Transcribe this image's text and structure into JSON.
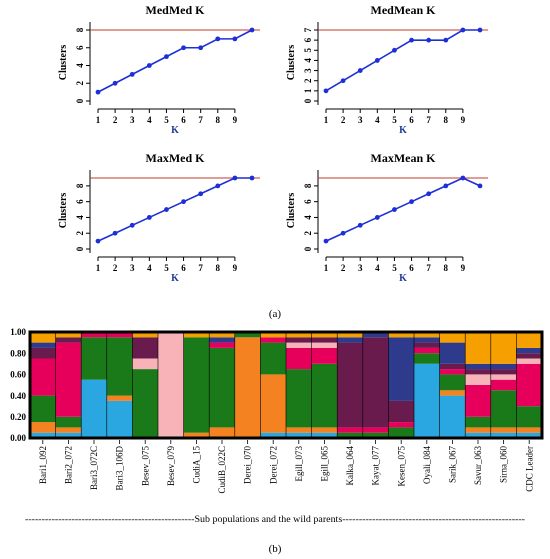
{
  "panel_labels": {
    "a": "(a)",
    "b": "(b)"
  },
  "k_panels": {
    "xlabel": "K",
    "ylabel": "Clusters",
    "reference_line_color": "#c0392b",
    "series_color": "#1d2fd6"
  },
  "structure": {
    "footer": "---------------------------------------------------Sub populations and the wild parents-------------------------------------------------------",
    "cluster_colors": [
      "#2aa7e0",
      "#f58220",
      "#1a7a1a",
      "#e6005c",
      "#f7b3b8",
      "#6a1b4d",
      "#2e3a8c",
      "#f5a000",
      "#b30047",
      "#3a2a6e"
    ]
  },
  "chart_data": [
    {
      "type": "line",
      "title": "MedMed K",
      "xlabel": "K",
      "ylabel": "Clusters",
      "x": [
        1,
        2,
        3,
        4,
        5,
        6,
        7,
        8,
        9,
        10
      ],
      "y": [
        1,
        2,
        3,
        4,
        5,
        6,
        6,
        7,
        7,
        8
      ],
      "xticks": [
        "1",
        "2",
        "3",
        "4",
        "5",
        "6",
        "7",
        "8",
        "9"
      ],
      "yticks": [
        "0",
        "2",
        "4",
        "6",
        "8"
      ],
      "xlim": [
        1,
        10
      ],
      "ylim": [
        0,
        8
      ],
      "reference_line": 8
    },
    {
      "type": "line",
      "title": "MedMean K",
      "xlabel": "K",
      "ylabel": "Clusters",
      "x": [
        1,
        2,
        3,
        4,
        5,
        6,
        7,
        8,
        9,
        10
      ],
      "y": [
        1,
        2,
        3,
        4,
        5,
        6,
        6,
        6,
        7,
        7
      ],
      "xticks": [
        "1",
        "2",
        "3",
        "4",
        "5",
        "6",
        "7",
        "8",
        "9"
      ],
      "yticks": [
        "0",
        "1",
        "2",
        "3",
        "4",
        "5",
        "6",
        "7"
      ],
      "xlim": [
        1,
        10
      ],
      "ylim": [
        0,
        7
      ],
      "reference_line": 7
    },
    {
      "type": "line",
      "title": "MaxMed K",
      "xlabel": "K",
      "ylabel": "Clusters",
      "x": [
        1,
        2,
        3,
        4,
        5,
        6,
        7,
        8,
        9,
        10
      ],
      "y": [
        1,
        2,
        3,
        4,
        5,
        6,
        7,
        8,
        9,
        9
      ],
      "xticks": [
        "1",
        "2",
        "3",
        "4",
        "5",
        "6",
        "7",
        "8",
        "9"
      ],
      "yticks": [
        "0",
        "2",
        "4",
        "6",
        "8"
      ],
      "xlim": [
        1,
        10
      ],
      "ylim": [
        0,
        9
      ],
      "reference_line": 9
    },
    {
      "type": "line",
      "title": "MaxMean K",
      "xlabel": "K",
      "ylabel": "Clusters",
      "x": [
        1,
        2,
        3,
        4,
        5,
        6,
        7,
        8,
        9,
        10
      ],
      "y": [
        1,
        2,
        3,
        4,
        5,
        6,
        7,
        8,
        9,
        8
      ],
      "xticks": [
        "1",
        "2",
        "3",
        "4",
        "5",
        "6",
        "7",
        "8",
        "9"
      ],
      "yticks": [
        "0",
        "2",
        "4",
        "6",
        "8"
      ],
      "xlim": [
        1,
        10
      ],
      "ylim": [
        0,
        9
      ],
      "reference_line": 9
    },
    {
      "type": "bar",
      "title": "",
      "xlabel": "Sub populations and the wild parents",
      "ylabel": "",
      "stacked": true,
      "yticks": [
        "0.00",
        "0.20",
        "0.40",
        "0.60",
        "0.80",
        "1.00"
      ],
      "ylim": [
        0,
        1
      ],
      "categories": [
        "Bari1_092",
        "Bari2_072",
        "Bari3_072C",
        "Bari3_106D",
        "Besev_075",
        "Besev_079",
        "CudiA_15",
        "CudiB_022C",
        "Derei_070",
        "Derei_072",
        "Egill_073",
        "Egill_065",
        "Kalka_064",
        "Kayat_077",
        "Kesen_075",
        "Oyali_084",
        "Sarik_067",
        "Savur_063",
        "Sirna_060",
        "CDC Leader"
      ],
      "series": [
        {
          "values": [
            0.05,
            0.05,
            0.55,
            0.35,
            0.0,
            0.0,
            0.0,
            0.0,
            0.0,
            0.05,
            0.05,
            0.05,
            0.0,
            0.0,
            0.0,
            0.7,
            0.4,
            0.05,
            0.05,
            0.05
          ]
        },
        {
          "values": [
            0.1,
            0.05,
            0.0,
            0.05,
            0.0,
            0.0,
            0.05,
            0.1,
            0.95,
            0.55,
            0.05,
            0.05,
            0.0,
            0.0,
            0.0,
            0.0,
            0.05,
            0.05,
            0.05,
            0.05
          ]
        },
        {
          "values": [
            0.25,
            0.1,
            0.4,
            0.55,
            0.65,
            0.0,
            0.9,
            0.75,
            0.05,
            0.3,
            0.55,
            0.6,
            0.05,
            0.05,
            0.1,
            0.1,
            0.15,
            0.1,
            0.35,
            0.2
          ]
        },
        {
          "values": [
            0.35,
            0.7,
            0.05,
            0.05,
            0.0,
            0.0,
            0.0,
            0.05,
            0.0,
            0.05,
            0.2,
            0.15,
            0.05,
            0.05,
            0.05,
            0.05,
            0.05,
            0.3,
            0.1,
            0.4
          ]
        },
        {
          "values": [
            0.0,
            0.0,
            0.0,
            0.0,
            0.1,
            1.0,
            0.0,
            0.0,
            0.0,
            0.0,
            0.05,
            0.05,
            0.0,
            0.0,
            0.0,
            0.0,
            0.0,
            0.1,
            0.05,
            0.05
          ]
        },
        {
          "values": [
            0.1,
            0.05,
            0.0,
            0.0,
            0.2,
            0.0,
            0.0,
            0.0,
            0.0,
            0.0,
            0.05,
            0.05,
            0.8,
            0.85,
            0.2,
            0.05,
            0.05,
            0.05,
            0.05,
            0.05
          ]
        },
        {
          "values": [
            0.05,
            0.0,
            0.0,
            0.0,
            0.0,
            0.0,
            0.0,
            0.05,
            0.0,
            0.0,
            0.0,
            0.0,
            0.05,
            0.05,
            0.6,
            0.05,
            0.2,
            0.05,
            0.05,
            0.05
          ]
        },
        {
          "values": [
            0.1,
            0.05,
            0.0,
            0.0,
            0.05,
            0.0,
            0.05,
            0.05,
            0.0,
            0.05,
            0.05,
            0.05,
            0.05,
            0.0,
            0.05,
            0.05,
            0.1,
            0.3,
            0.3,
            0.15
          ]
        }
      ]
    }
  ]
}
